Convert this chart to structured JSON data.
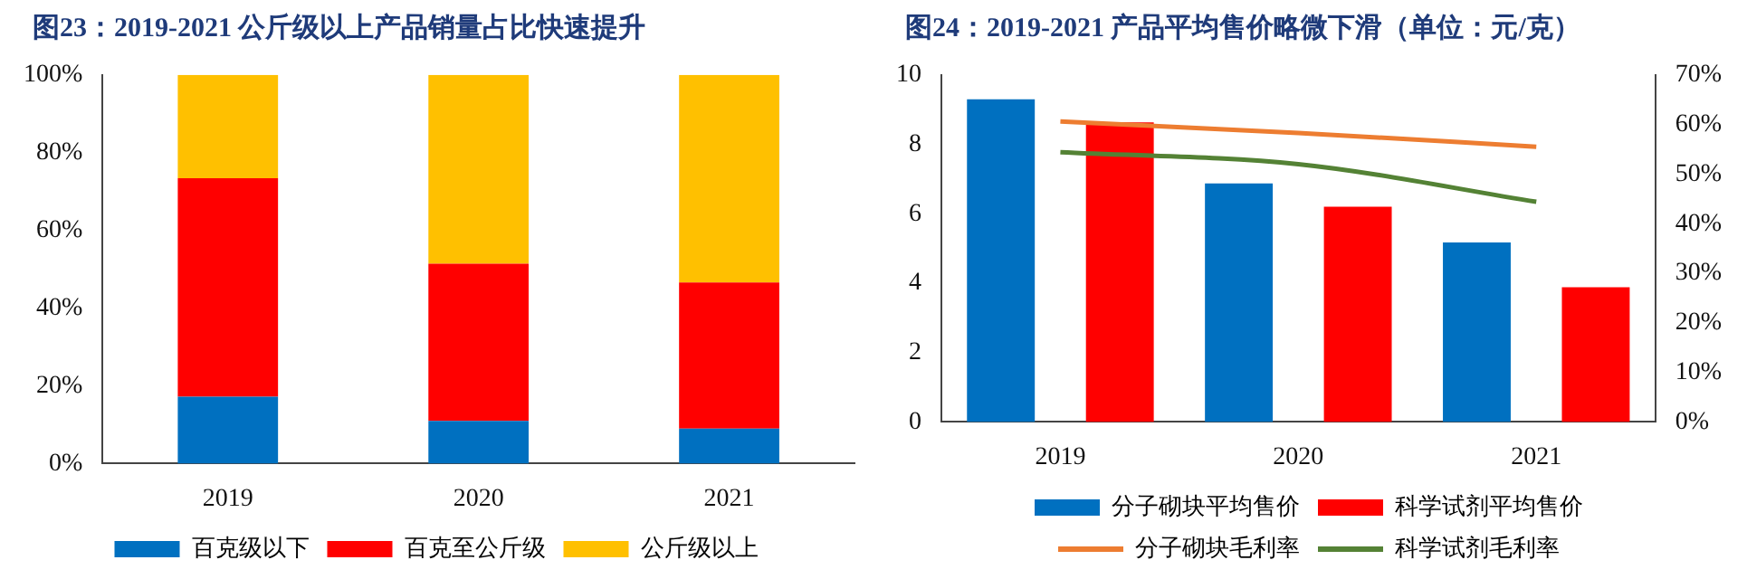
{
  "chart_data": [
    {
      "type": "bar",
      "title": "图23：2019-2021 公斤级以上产品销量占比快速提升",
      "categories": [
        "2019",
        "2020",
        "2021"
      ],
      "stacked": true,
      "series": [
        {
          "name": "百克级以下",
          "color": "#0070c0",
          "values": [
            17.2,
            11.0,
            9.0
          ]
        },
        {
          "name": "百克至公斤级",
          "color": "#ff0000",
          "values": [
            56.2,
            40.4,
            37.6
          ]
        },
        {
          "name": "公斤级以上",
          "color": "#ffc000",
          "values": [
            26.6,
            48.6,
            53.4
          ]
        }
      ],
      "ylim": [
        0,
        100
      ],
      "yticks": [
        {
          "value": 0,
          "label": "0%"
        },
        {
          "value": 20,
          "label": "20%"
        },
        {
          "value": 40,
          "label": "40%"
        },
        {
          "value": 60,
          "label": "60%"
        },
        {
          "value": 80,
          "label": "80%"
        },
        {
          "value": 100,
          "label": "100%"
        }
      ],
      "grid": false,
      "legend": "bottom"
    },
    {
      "type": "bar",
      "title": "图24：2019-2021 产品平均售价略微下滑（单位：元/克）",
      "categories": [
        "2019",
        "2020",
        "2021"
      ],
      "series": [
        {
          "name": "分子砌块平均售价",
          "color": "#0070c0",
          "values": [
            9.3,
            6.87,
            5.17
          ]
        },
        {
          "name": "科学试剂平均售价",
          "color": "#ff0000",
          "values": [
            8.63,
            6.2,
            3.88
          ]
        },
        {
          "name": "分子砌块毛利率",
          "type": "line",
          "axis": "y2",
          "color": "#ed7d31",
          "values": [
            60.6,
            58.3,
            55.5
          ]
        },
        {
          "name": "科学试剂毛利率",
          "type": "line",
          "axis": "y2",
          "color": "#548235",
          "values": [
            54.4,
            52.0,
            44.4
          ]
        }
      ],
      "ylim": [
        0,
        10
      ],
      "yticks": [
        0,
        2,
        4,
        6,
        8,
        10
      ],
      "y2lim": [
        0,
        70
      ],
      "y2ticks": [
        {
          "value": 0,
          "label": "0%"
        },
        {
          "value": 10,
          "label": "10%"
        },
        {
          "value": 20,
          "label": "20%"
        },
        {
          "value": 30,
          "label": "30%"
        },
        {
          "value": 40,
          "label": "40%"
        },
        {
          "value": 50,
          "label": "50%"
        },
        {
          "value": 60,
          "label": "60%"
        },
        {
          "value": 70,
          "label": "70%"
        }
      ],
      "grid": false,
      "legend": "bottom",
      "marker": "none"
    }
  ]
}
